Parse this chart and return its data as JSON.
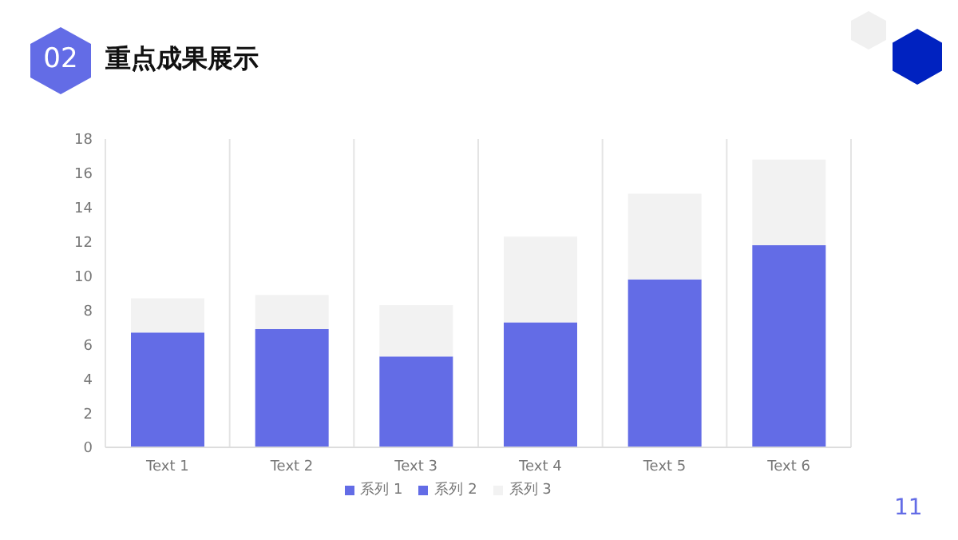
{
  "chart_data": {
    "type": "bar",
    "title": "重点成果展示",
    "categories": [
      "Text 1",
      "Text 2",
      "Text 3",
      "Text 4",
      "Text 5",
      "Text 6"
    ],
    "series": [
      {
        "name": "系列 1",
        "color": "#636ce6",
        "values": [
          6.7,
          6.9,
          5.3,
          7.3,
          9.8,
          11.8
        ]
      },
      {
        "name": "系列 2",
        "color": "#636ce6",
        "values": [
          0,
          0,
          0,
          0,
          0,
          0
        ]
      },
      {
        "name": "系列 3",
        "color": "#f2f2f2",
        "values": [
          2.0,
          2.0,
          3.0,
          5.0,
          5.0,
          5.0
        ]
      }
    ],
    "stacked": true,
    "ylim": [
      0,
      18
    ],
    "yticks": [
      0,
      2,
      4,
      6,
      8,
      10,
      12,
      14,
      16,
      18
    ],
    "grid": "x",
    "legend": "bottom",
    "annotations": [
      "02",
      "11"
    ]
  }
}
